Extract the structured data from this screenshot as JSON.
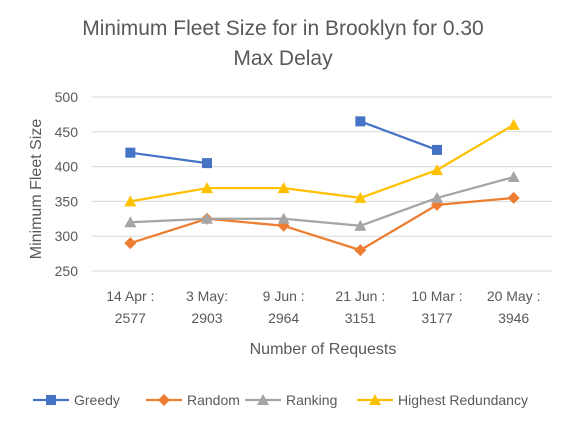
{
  "chart_data": {
    "type": "line",
    "title_lines": [
      "Minimum Fleet Size for in Brooklyn for 0.30",
      "Max Delay"
    ],
    "xlabel": "Number of Requests",
    "ylabel": "Minimum Fleet Size",
    "ylim": [
      250,
      500
    ],
    "yticks": [
      250,
      300,
      350,
      400,
      450,
      500
    ],
    "grid": true,
    "legend_position": "bottom",
    "categories": [
      [
        "14 Apr :",
        "2577"
      ],
      [
        "3 May:",
        "2903"
      ],
      [
        "9 Jun :",
        "2964"
      ],
      [
        "21 Jun :",
        "3151"
      ],
      [
        "10 Mar :",
        "3177"
      ],
      [
        "20 May :",
        "3946"
      ]
    ],
    "series": [
      {
        "name": "Greedy",
        "color": "#4472C4",
        "marker": "square",
        "values": [
          420,
          405,
          null,
          465,
          424,
          null
        ]
      },
      {
        "name": "Random",
        "color": "#ED7D31",
        "marker": "diamond",
        "values": [
          290,
          325,
          315,
          280,
          345,
          355
        ]
      },
      {
        "name": "Ranking",
        "color": "#A5A5A5",
        "marker": "triangle",
        "values": [
          320,
          325,
          325,
          315,
          355,
          385
        ]
      },
      {
        "name": "Highest Redundancy",
        "color": "#FFC000",
        "marker": "triangle",
        "values": [
          350,
          369,
          369,
          355,
          395,
          460
        ]
      }
    ]
  }
}
